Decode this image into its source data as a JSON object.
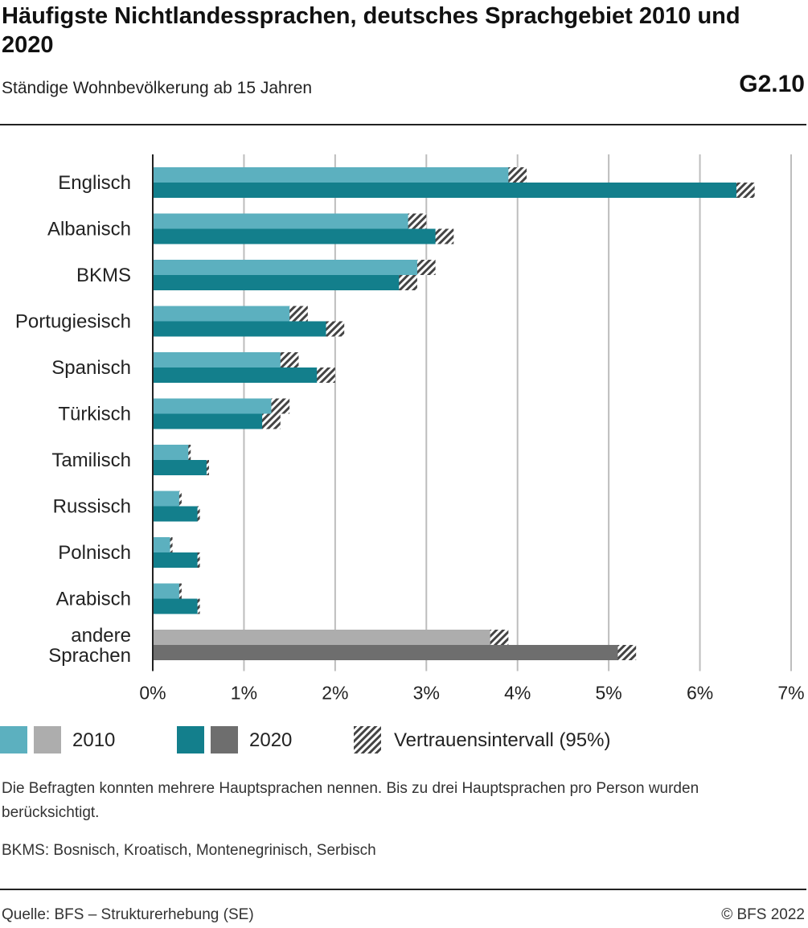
{
  "header": {
    "title": "Häufigste Nichtlandessprachen, deutsches Sprachgebiet 2010 und 2020",
    "subtitle": "Ständige Wohnbevölkerung ab 15 Jahren",
    "code": "G2.10"
  },
  "legend": {
    "label_2010": "2010",
    "label_2020": "2020",
    "label_ci": "Vertrauensintervall (95%)"
  },
  "colors": {
    "teal_2010": "#5cb0bf",
    "teal_2020": "#137f8c",
    "grey_2010": "#adadad",
    "grey_2020": "#6e6e6e",
    "grid": "#bdbdbd",
    "axis": "#222222"
  },
  "notes": {
    "note1": "Die Befragten konnten mehrere Hauptsprachen nennen. Bis zu drei Hauptsprachen pro Person wurden berücksichtigt.",
    "note2": "BKMS: Bosnisch, Kroatisch, Montenegrinisch, Serbisch"
  },
  "footer": {
    "source": "Quelle: BFS – Strukturerhebung (SE)",
    "copyright": "© BFS 2022"
  },
  "chart_data": {
    "type": "bar",
    "orientation": "horizontal",
    "categories": [
      "Englisch",
      "Albanisch",
      "BKMS",
      "Portugiesisch",
      "Spanisch",
      "Türkisch",
      "Tamilisch",
      "Russisch",
      "Polnisch",
      "Arabisch",
      "andere Sprachen"
    ],
    "series": [
      {
        "name": "2010",
        "values": [
          4.0,
          2.9,
          3.0,
          1.6,
          1.5,
          1.4,
          0.4,
          0.3,
          0.2,
          0.3,
          3.8
        ],
        "ci": [
          [
            3.9,
            4.1
          ],
          [
            2.8,
            3.0
          ],
          [
            2.9,
            3.1
          ],
          [
            1.5,
            1.7
          ],
          [
            1.4,
            1.6
          ],
          [
            1.3,
            1.5
          ],
          [
            0.39,
            0.41
          ],
          [
            0.29,
            0.31
          ],
          [
            0.19,
            0.21
          ],
          [
            0.29,
            0.31
          ],
          [
            3.7,
            3.9
          ]
        ]
      },
      {
        "name": "2020",
        "values": [
          6.5,
          3.2,
          2.8,
          2.0,
          1.9,
          1.3,
          0.6,
          0.5,
          0.5,
          0.5,
          5.2
        ],
        "ci": [
          [
            6.4,
            6.6
          ],
          [
            3.1,
            3.3
          ],
          [
            2.7,
            2.9
          ],
          [
            1.9,
            2.1
          ],
          [
            1.8,
            2.0
          ],
          [
            1.2,
            1.4
          ],
          [
            0.59,
            0.61
          ],
          [
            0.49,
            0.51
          ],
          [
            0.49,
            0.51
          ],
          [
            0.49,
            0.51
          ],
          [
            5.1,
            5.3
          ]
        ]
      }
    ],
    "xlim": [
      0,
      7
    ],
    "xticks": [
      "0%",
      "1%",
      "2%",
      "3%",
      "4%",
      "5%",
      "6%",
      "7%"
    ],
    "grid": true,
    "legend_position": "bottom"
  }
}
